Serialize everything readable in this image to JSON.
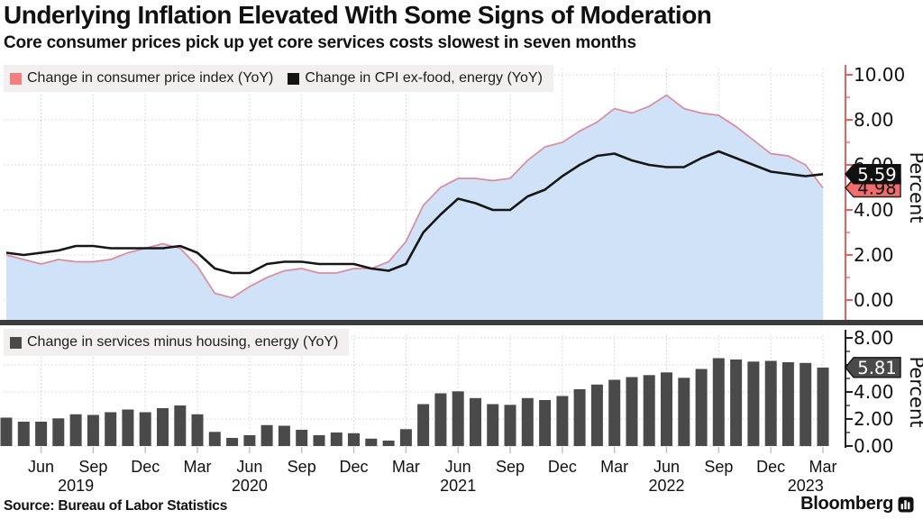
{
  "header": {
    "title": "Underlying Inflation Elevated With Some Signs of Moderation",
    "subtitle": "Core consumer prices pick up yet core services costs slowest in seven months"
  },
  "footer": {
    "source": "Source: Bureau of Labor Statistics",
    "brand": "Bloomberg"
  },
  "colors": {
    "area_fill": "#cfe2f7",
    "cpi_line": "#dd8b9c",
    "core_line": "#161616",
    "bar_fill": "#4a4a4a",
    "axis_top": "#e86060",
    "axis_bottom": "#222222",
    "grid": "#cfcfcf",
    "legend_bg": "#f1f0ee",
    "swatch_cpi": "#f47f7f",
    "swatch_core": "#141414",
    "swatch_services": "#4a4a4a",
    "tag_core_bg": "#111111",
    "tag_core_text": "#ffffff",
    "tag_cpi_bg": "#f26d6d",
    "tag_cpi_text": "#111111",
    "tag_services_bg": "#4a4a4a",
    "tag_services_text": "#ffffff",
    "divider": "#3c3c3c"
  },
  "x_axis": {
    "start": "Apr 2019",
    "end": "Mar 2023",
    "frequency": "monthly",
    "tick_labels": [
      {
        "index": 2,
        "label": "Jun"
      },
      {
        "index": 5,
        "label": "Sep"
      },
      {
        "index": 8,
        "label": "Dec"
      },
      {
        "index": 11,
        "label": "Mar"
      },
      {
        "index": 14,
        "label": "Jun"
      },
      {
        "index": 17,
        "label": "Sep"
      },
      {
        "index": 20,
        "label": "Dec"
      },
      {
        "index": 23,
        "label": "Mar"
      },
      {
        "index": 26,
        "label": "Jun"
      },
      {
        "index": 29,
        "label": "Sep"
      },
      {
        "index": 32,
        "label": "Dec"
      },
      {
        "index": 35,
        "label": "Mar"
      },
      {
        "index": 38,
        "label": "Jun"
      },
      {
        "index": 41,
        "label": "Sep"
      },
      {
        "index": 44,
        "label": "Dec"
      },
      {
        "index": 47,
        "label": "Mar"
      }
    ],
    "year_labels": [
      {
        "index": 4,
        "label": "2019"
      },
      {
        "index": 14,
        "label": "2020"
      },
      {
        "index": 26,
        "label": "2021"
      },
      {
        "index": 38,
        "label": "2022"
      },
      {
        "index": 46,
        "label": "2023"
      }
    ]
  },
  "chart_data": [
    {
      "type": "area",
      "panel": "top",
      "ylabel": "Percent",
      "ylim": [
        0,
        10
      ],
      "yticks": [
        0,
        2,
        4,
        6,
        8,
        10
      ],
      "grid": true,
      "legend_position": "top-left",
      "legend": [
        {
          "label": "Change in consumer price index (YoY)",
          "color": "#f47f7f"
        },
        {
          "label": "Change in CPI ex-food, energy (YoY)",
          "color": "#141414"
        }
      ],
      "series": [
        {
          "name": "Change in consumer price index (YoY)",
          "style": "area",
          "values": [
            2.0,
            1.8,
            1.6,
            1.8,
            1.7,
            1.7,
            1.8,
            2.1,
            2.3,
            2.5,
            2.3,
            1.5,
            0.3,
            0.1,
            0.6,
            1.0,
            1.3,
            1.4,
            1.2,
            1.2,
            1.4,
            1.4,
            1.7,
            2.6,
            4.2,
            5.0,
            5.4,
            5.4,
            5.3,
            5.4,
            6.2,
            6.8,
            7.0,
            7.5,
            7.9,
            8.5,
            8.3,
            8.6,
            9.1,
            8.5,
            8.3,
            8.2,
            7.7,
            7.1,
            6.5,
            6.4,
            6.0,
            4.98
          ]
        },
        {
          "name": "Change in CPI ex-food, energy (YoY)",
          "style": "line",
          "values": [
            2.1,
            2.0,
            2.1,
            2.2,
            2.4,
            2.4,
            2.3,
            2.3,
            2.3,
            2.3,
            2.4,
            2.1,
            1.4,
            1.2,
            1.2,
            1.6,
            1.7,
            1.7,
            1.6,
            1.6,
            1.6,
            1.4,
            1.3,
            1.6,
            3.0,
            3.8,
            4.5,
            4.3,
            4.0,
            4.0,
            4.6,
            4.9,
            5.5,
            6.0,
            6.4,
            6.5,
            6.2,
            6.0,
            5.9,
            5.9,
            6.3,
            6.6,
            6.3,
            6.0,
            5.7,
            5.6,
            5.5,
            5.59
          ]
        }
      ],
      "end_labels": [
        {
          "text": "5.59",
          "series": "Change in CPI ex-food, energy (YoY)",
          "value": 5.59
        },
        {
          "text": "4.98",
          "series": "Change in consumer price index (YoY)",
          "value": 4.98
        }
      ]
    },
    {
      "type": "bar",
      "panel": "bottom",
      "ylabel": "Percent",
      "ylim": [
        0,
        8
      ],
      "yticks": [
        0,
        2,
        4,
        6,
        8
      ],
      "grid": true,
      "legend_position": "top-left",
      "legend": [
        {
          "label": "Change in services minus housing, energy (YoY)",
          "color": "#4a4a4a"
        }
      ],
      "series": [
        {
          "name": "Change in services minus housing, energy (YoY)",
          "style": "bar",
          "values": [
            2.1,
            1.8,
            1.8,
            2.05,
            2.35,
            2.3,
            2.5,
            2.7,
            2.5,
            2.8,
            3.0,
            2.35,
            1.05,
            0.6,
            0.8,
            1.55,
            1.5,
            1.2,
            0.8,
            1.0,
            0.95,
            0.55,
            0.4,
            1.25,
            3.1,
            3.9,
            4.05,
            3.55,
            3.1,
            3.05,
            3.55,
            3.4,
            3.7,
            4.2,
            4.55,
            4.9,
            5.1,
            5.25,
            5.45,
            5.05,
            5.7,
            6.5,
            6.4,
            6.25,
            6.3,
            6.2,
            6.15,
            5.81
          ]
        }
      ],
      "end_labels": [
        {
          "text": "5.81",
          "series": "Change in services minus housing, energy (YoY)",
          "value": 5.81
        }
      ]
    }
  ]
}
